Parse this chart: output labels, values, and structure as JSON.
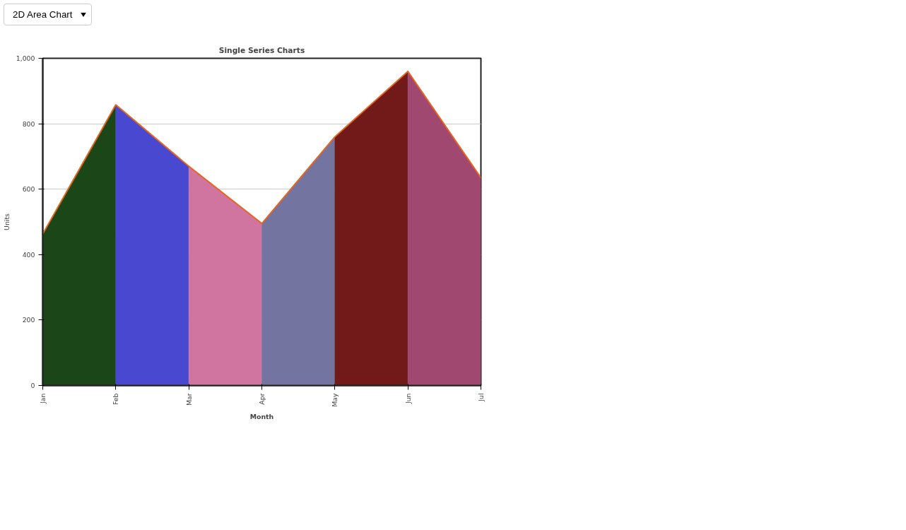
{
  "chart_data": {
    "type": "area",
    "title": "Single Series Charts",
    "xlabel": "Month",
    "ylabel": "Units",
    "annotations": [
      "2D Area Chart"
    ],
    "categories": [
      "Jan",
      "Feb",
      "Mar",
      "Apr",
      "May",
      "Jun",
      "Jul"
    ],
    "series": [
      {
        "color": "#1b4618",
        "values": [
          463,
          858,
          null,
          null,
          null,
          null,
          null
        ]
      },
      {
        "color": "#4848d0",
        "values": [
          null,
          858,
          670,
          null,
          null,
          null,
          null
        ]
      },
      {
        "color": "#d075a0",
        "values": [
          null,
          null,
          670,
          495,
          null,
          null,
          null
        ]
      },
      {
        "color": "#7474a0",
        "values": [
          null,
          null,
          null,
          495,
          760,
          null,
          null
        ]
      },
      {
        "color": "#721a1a",
        "values": [
          null,
          null,
          null,
          null,
          760,
          960,
          null
        ]
      },
      {
        "color": "#a04870",
        "values": [
          null,
          null,
          null,
          null,
          null,
          960,
          635
        ]
      },
      {
        "type": "line",
        "color": "#e8641e",
        "values": [
          463,
          858,
          670,
          495,
          760,
          960,
          635
        ]
      }
    ],
    "ylim": [
      0,
      1000
    ],
    "yticks": [
      0,
      200,
      400,
      600,
      800,
      {
        "value": 1000,
        "label": "1,000"
      }
    ],
    "grid": "y"
  }
}
